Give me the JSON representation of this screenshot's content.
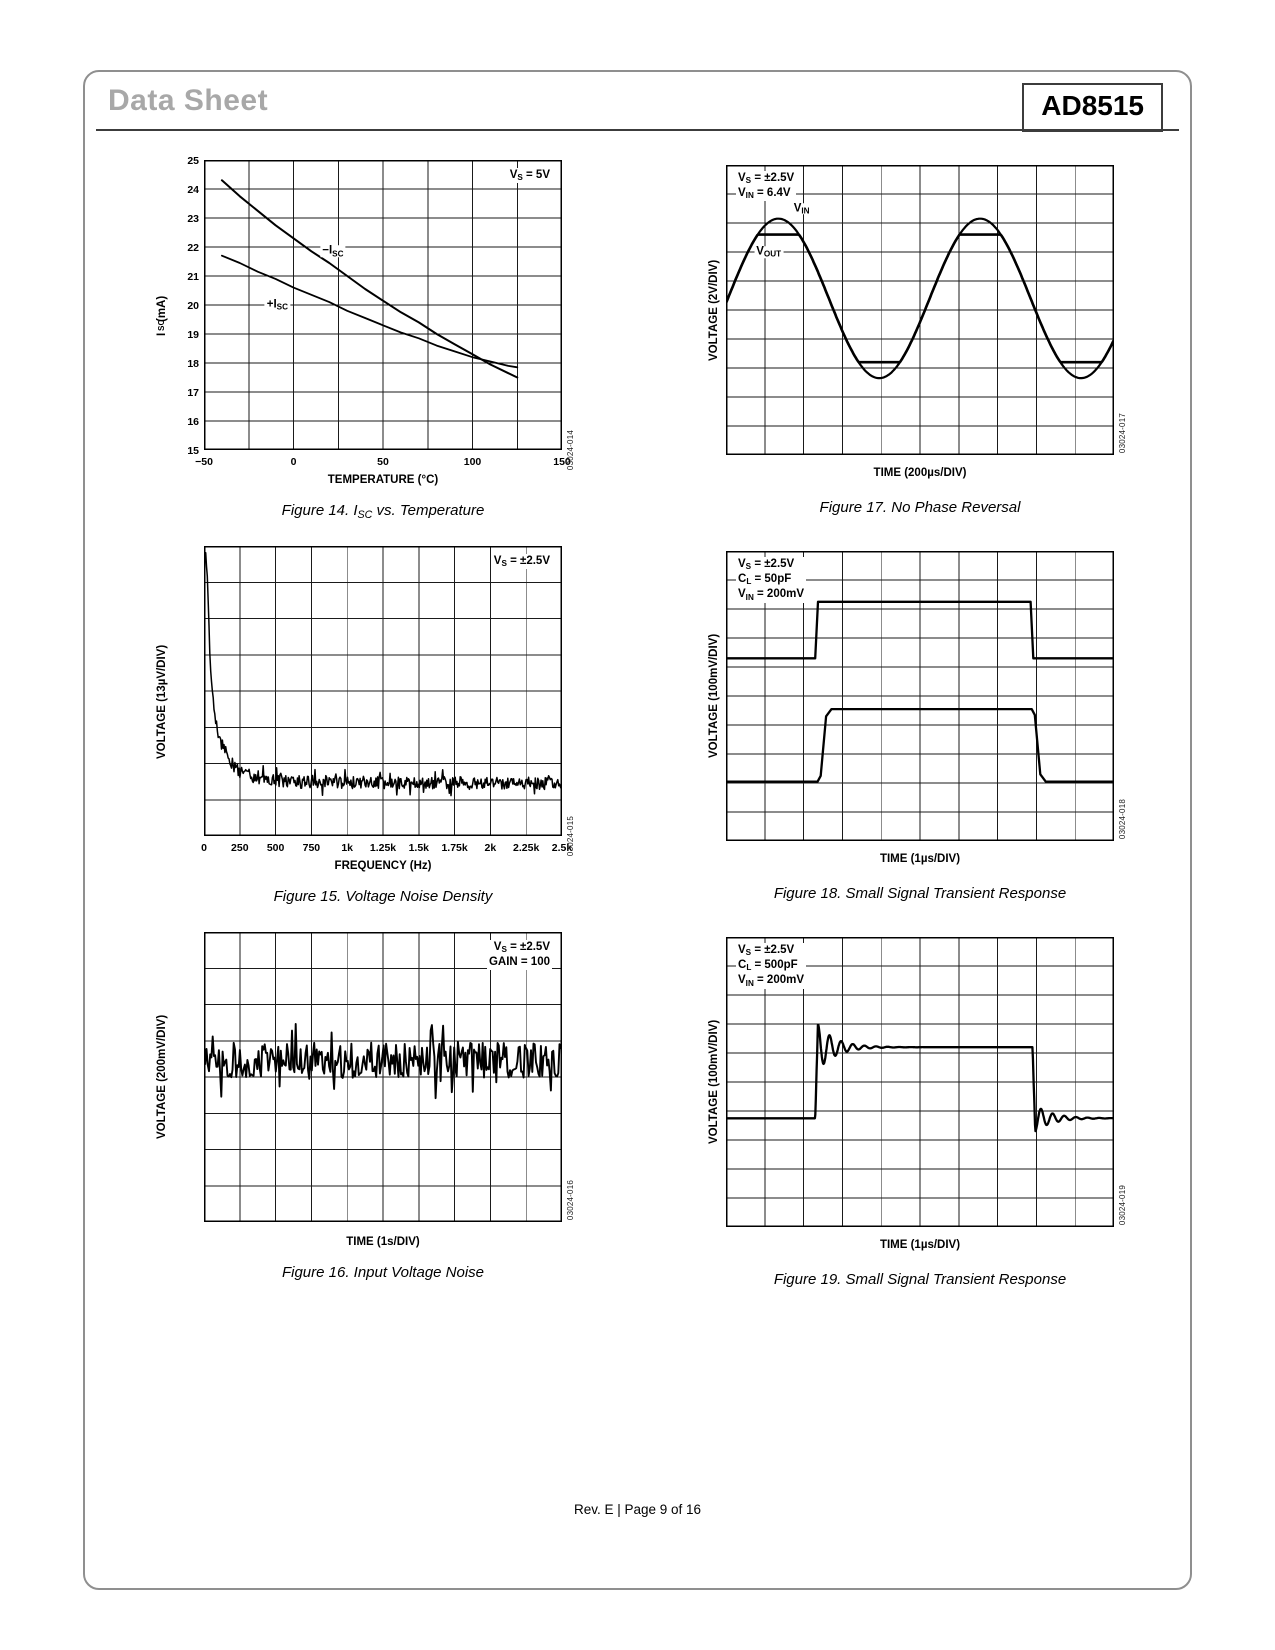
{
  "page": {
    "doc_type": "Data Sheet",
    "part_number": "AD8515",
    "footer": "Rev. E | Page 9 of 16"
  },
  "chart_data": {
    "fig14": {
      "type": "line",
      "figure_id": "03024-014",
      "caption_html": "Figure 14. I<sub>SC</sub> vs. Temperature",
      "xlabel": "TEMPERATURE (°C)",
      "ylabel_html": "I<sub>SC</sub> (mA)",
      "annotation_html": [
        "V<sub>S</sub> = 5V"
      ],
      "annotation_pos": "tr",
      "xlim": [
        -50,
        150
      ],
      "ylim": [
        15,
        25
      ],
      "grid": {
        "cols": 8,
        "rows": 10
      },
      "margins": {
        "l": 30,
        "b": 22
      },
      "xticks": [
        -50,
        0,
        50,
        100,
        150
      ],
      "xtick_labels": [
        "−50",
        "0",
        "50",
        "100",
        "150"
      ],
      "yticks": [
        15,
        16,
        17,
        18,
        19,
        20,
        21,
        22,
        23,
        24,
        25
      ],
      "series": [
        {
          "name": "−ISC",
          "kind": "points",
          "lw": 2,
          "pts": [
            [
              -40,
              24.3
            ],
            [
              -30,
              23.75
            ],
            [
              -20,
              23.25
            ],
            [
              -10,
              22.75
            ],
            [
              0,
              22.3
            ],
            [
              10,
              21.85
            ],
            [
              20,
              21.45
            ],
            [
              30,
              21.0
            ],
            [
              40,
              20.55
            ],
            [
              50,
              20.15
            ],
            [
              60,
              19.75
            ],
            [
              70,
              19.4
            ],
            [
              80,
              19.0
            ],
            [
              90,
              18.65
            ],
            [
              100,
              18.3
            ],
            [
              110,
              17.95
            ],
            [
              120,
              17.65
            ],
            [
              125,
              17.5
            ]
          ]
        },
        {
          "name": "+ISC",
          "kind": "points",
          "lw": 1.8,
          "pts": [
            [
              -40,
              21.7
            ],
            [
              -30,
              21.45
            ],
            [
              -20,
              21.15
            ],
            [
              -10,
              20.9
            ],
            [
              0,
              20.6
            ],
            [
              10,
              20.35
            ],
            [
              20,
              20.1
            ],
            [
              30,
              19.8
            ],
            [
              40,
              19.55
            ],
            [
              50,
              19.3
            ],
            [
              60,
              19.05
            ],
            [
              70,
              18.85
            ],
            [
              80,
              18.6
            ],
            [
              90,
              18.4
            ],
            [
              100,
              18.2
            ],
            [
              110,
              18.05
            ],
            [
              120,
              17.9
            ],
            [
              125,
              17.85
            ]
          ]
        }
      ],
      "series_labels": [
        {
          "html": "−I<sub>SC</sub>",
          "x": 22,
          "y": 21.85
        },
        {
          "html": "+I<sub>SC</sub>",
          "x": -9,
          "y": 20.0
        }
      ]
    },
    "fig15": {
      "type": "line",
      "figure_id": "03024-015",
      "caption_html": "Figure 15. Voltage Noise Density",
      "xlabel": "FREQUENCY (Hz)",
      "ylabel_html": "VOLTAGE (13µV/DIV)",
      "annotation_html": [
        "V<sub>S</sub> = ±2.5V"
      ],
      "annotation_pos": "tr",
      "xlim": [
        0,
        2500
      ],
      "ylim": [
        0,
        8
      ],
      "grid": {
        "cols": 10,
        "rows": 8
      },
      "margins": {
        "l": 30,
        "b": 22
      },
      "xticks": [
        0,
        250,
        500,
        750,
        1000,
        1250,
        1500,
        1750,
        2000,
        2250,
        2500
      ],
      "xtick_labels": [
        "0",
        "250",
        "500",
        "750",
        "1k",
        "1.25k",
        "1.5k",
        "1.75k",
        "2k",
        "2.25k",
        "2.5k"
      ],
      "series": [
        {
          "name": "voltage noise density",
          "kind": "noise",
          "lw": 1.5,
          "n": 430,
          "seed": 11,
          "amp": 0.17,
          "envelope": [
            [
              0,
              7.75
            ],
            [
              18,
              7.75
            ],
            [
              30,
              6.2
            ],
            [
              45,
              4.8
            ],
            [
              60,
              3.9
            ],
            [
              90,
              3.0
            ],
            [
              130,
              2.45
            ],
            [
              180,
              2.05
            ],
            [
              250,
              1.78
            ],
            [
              350,
              1.62
            ],
            [
              500,
              1.52
            ],
            [
              1000,
              1.48
            ],
            [
              2500,
              1.45
            ]
          ]
        }
      ]
    },
    "fig16": {
      "type": "line",
      "figure_id": "03024-016",
      "caption_html": "Figure 16. Input Voltage Noise",
      "xlabel": "TIME (1s/DIV)",
      "ylabel_html": "VOLTAGE (200mV/DIV)",
      "annotation_html": [
        "V<sub>S</sub> = ±2.5V",
        "GAIN = 100"
      ],
      "annotation_pos": "tr",
      "xlim": [
        0,
        10
      ],
      "ylim": [
        0,
        8
      ],
      "grid": {
        "cols": 10,
        "rows": 8
      },
      "margins": {
        "l": 30,
        "b": 0
      },
      "series": [
        {
          "name": "input voltage noise",
          "kind": "noise",
          "lw": 1.9,
          "n": 290,
          "seed": 29,
          "amp": 0.5,
          "envelope": [
            [
              0,
              4.45
            ],
            [
              10,
              4.45
            ]
          ]
        }
      ]
    },
    "fig17": {
      "type": "line",
      "figure_id": "03024-017",
      "caption_html": "Figure 17. No Phase Reversal",
      "xlabel": "TIME (200µs/DIV)",
      "ylabel_html": "VOLTAGE (2V/DIV)",
      "annotation_html": [
        "V<sub>S</sub> = ±2.5V",
        "V<sub>IN</sub> = 6.4V"
      ],
      "annotation_pos": "tl",
      "xlim": [
        0,
        10
      ],
      "ylim": [
        0,
        10
      ],
      "grid": {
        "cols": 10,
        "rows": 10
      },
      "margins": {
        "l": 0,
        "b": 0
      },
      "series": [
        {
          "name": "VIN",
          "kind": "sine",
          "lw": 2.2,
          "n": 360,
          "center": 5.4,
          "amp": 2.75,
          "period": 5.2,
          "phase_x": 1.35
        },
        {
          "name": "VOUT",
          "kind": "sine",
          "lw": 2.6,
          "n": 360,
          "center": 5.4,
          "amp": 2.75,
          "period": 5.2,
          "phase_x": 1.35,
          "clip": [
            3.2,
            7.6
          ]
        }
      ],
      "series_labels": [
        {
          "html": "V<sub>IN</sub>",
          "x": 1.95,
          "y": 8.5
        },
        {
          "html": "V<sub>OUT</sub>",
          "x": 1.1,
          "y": 7.0
        }
      ]
    },
    "fig18": {
      "type": "line",
      "figure_id": "03024-018",
      "caption_html": "Figure 18. Small Signal Transient Response",
      "xlabel": "TIME (1µs/DIV)",
      "ylabel_html": "VOLTAGE (100mV/DIV)",
      "annotation_html": [
        "V<sub>S</sub> = ±2.5V",
        "C<sub>L</sub> = 50pF",
        "V<sub>IN</sub> = 200mV"
      ],
      "annotation_pos": "tl",
      "xlim": [
        0,
        10
      ],
      "ylim": [
        0,
        10
      ],
      "grid": {
        "cols": 10,
        "rows": 10
      },
      "margins": {
        "l": 0,
        "b": 0
      },
      "series": [
        {
          "name": "input",
          "kind": "points",
          "lw": 2.3,
          "pts": [
            [
              0,
              6.3
            ],
            [
              2.3,
              6.3
            ],
            [
              2.37,
              8.25
            ],
            [
              7.85,
              8.25
            ],
            [
              7.92,
              6.3
            ],
            [
              10,
              6.3
            ]
          ]
        },
        {
          "name": "output",
          "kind": "points",
          "lw": 2.3,
          "pts": [
            [
              0,
              2.05
            ],
            [
              2.36,
              2.05
            ],
            [
              2.44,
              2.25
            ],
            [
              2.58,
              4.3
            ],
            [
              2.72,
              4.55
            ],
            [
              7.88,
              4.55
            ],
            [
              7.96,
              4.35
            ],
            [
              8.1,
              2.3
            ],
            [
              8.24,
              2.05
            ],
            [
              10,
              2.05
            ]
          ]
        }
      ]
    },
    "fig19": {
      "type": "line",
      "figure_id": "03024-019",
      "caption_html": "Figure 19. Small Signal Transient Response",
      "xlabel": "TIME (1µs/DIV)",
      "ylabel_html": "VOLTAGE (100mV/DIV)",
      "annotation_html": [
        "V<sub>S</sub> = ±2.5V",
        "C<sub>L</sub> = 500pF",
        "V<sub>IN</sub> = 200mV"
      ],
      "annotation_pos": "tl",
      "xlim": [
        0,
        10
      ],
      "ylim": [
        0,
        10
      ],
      "grid": {
        "cols": 10,
        "rows": 10
      },
      "margins": {
        "l": 0,
        "b": 0
      },
      "series": [
        {
          "name": "output",
          "kind": "step_ring",
          "lw": 2.3,
          "n": 900,
          "low": 3.75,
          "high": 6.2,
          "rise_x": 2.3,
          "fall_x": 7.9,
          "ring_amp": 0.8,
          "ring_amp2": 0.45,
          "ring_period": 0.3,
          "ring_decay": 0.45
        }
      ]
    }
  }
}
